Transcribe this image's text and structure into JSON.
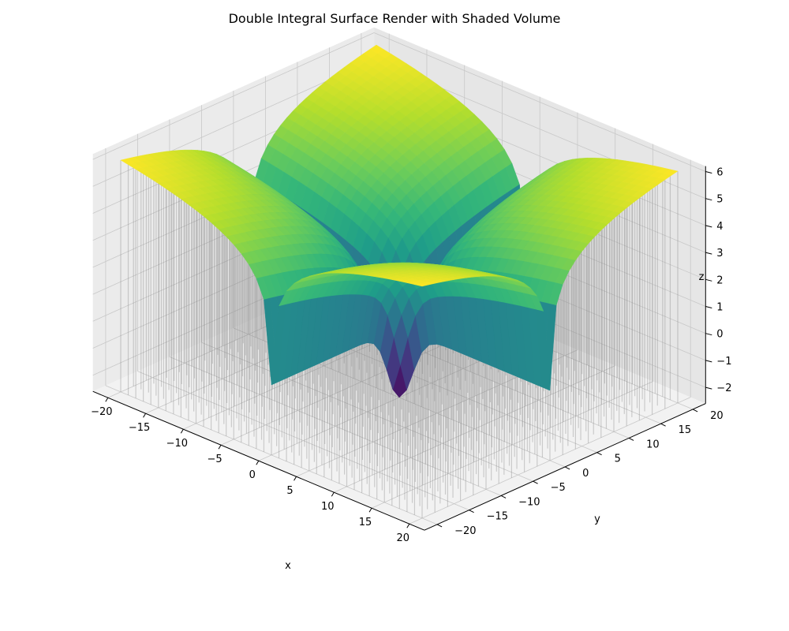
{
  "chart_data": {
    "type": "surface3d",
    "title": "Double Integral Surface Render with Shaded Volume",
    "xlabel": "x",
    "ylabel": "y",
    "zlabel": "z",
    "xlim": [
      -22,
      22
    ],
    "ylim": [
      -22,
      22
    ],
    "zlim": [
      -2.6,
      6.2
    ],
    "x_ticks": [
      "−20",
      "−15",
      "−10",
      "−5",
      "0",
      "5",
      "10",
      "15",
      "20"
    ],
    "x_tick_values": [
      -20,
      -15,
      -10,
      -5,
      0,
      5,
      10,
      15,
      20
    ],
    "y_ticks": [
      "−20",
      "−15",
      "−10",
      "−5",
      "0",
      "5",
      "10",
      "15",
      "20"
    ],
    "y_tick_values": [
      -20,
      -15,
      -10,
      -5,
      0,
      5,
      10,
      15,
      20
    ],
    "z_ticks": [
      "−2",
      "−1",
      "0",
      "1",
      "2",
      "3",
      "4",
      "5",
      "6"
    ],
    "z_tick_values": [
      -2,
      -1,
      0,
      1,
      2,
      3,
      4,
      5,
      6
    ],
    "surface": {
      "formula": "log(|x*y|+1) with sign flipped toward center (lily-petal shape)",
      "colormap": "viridis",
      "x_range": [
        -20,
        20
      ],
      "y_range": [
        -20,
        20
      ],
      "z_min": -2.6,
      "z_max": 6.0
    },
    "volume": {
      "color": "#808080",
      "opacity": 0.35,
      "base_z": -2.6
    },
    "grid": true,
    "pane_color": "#f0f0f0"
  }
}
